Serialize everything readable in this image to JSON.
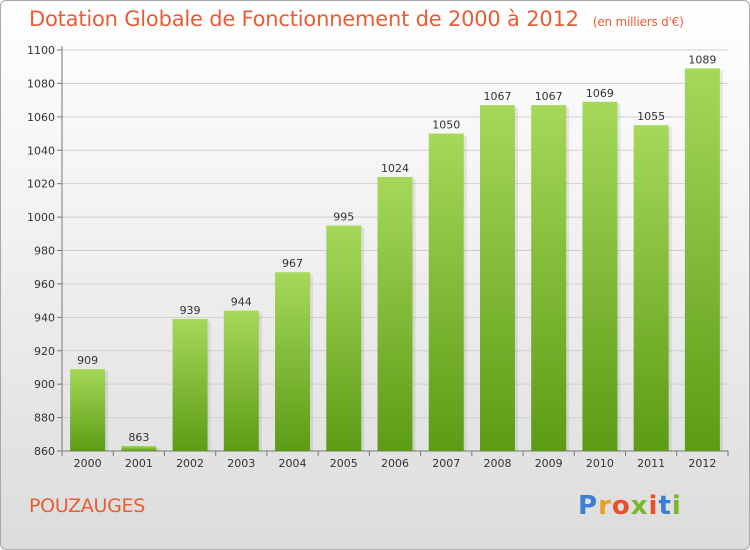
{
  "title": {
    "main": "Dotation Globale de Fonctionnement de 2000 à 2012",
    "unit": "(en milliers d'€)"
  },
  "commune": "POUZAUGES",
  "logo": {
    "text": "Proxiti",
    "letter_colors": [
      "#3b7fd0",
      "#f0a020",
      "#e8502a",
      "#79b82a",
      "#e8502a",
      "#3b7fd0",
      "#79b82a"
    ]
  },
  "colors": {
    "bar_light": "#a6d85a",
    "bar_dark": "#5c9c14",
    "accent": "#e85d36"
  },
  "chart_data": {
    "type": "bar",
    "categories": [
      "2000",
      "2001",
      "2002",
      "2003",
      "2004",
      "2005",
      "2006",
      "2007",
      "2008",
      "2009",
      "2010",
      "2011",
      "2012"
    ],
    "values": [
      909,
      863,
      939,
      944,
      967,
      995,
      1024,
      1050,
      1067,
      1067,
      1069,
      1055,
      1089
    ],
    "data_labels": [
      "909",
      "863",
      "939",
      "944",
      "967",
      "995",
      "1024",
      "1050",
      "1067",
      "1067",
      "1069",
      "1055",
      "1089"
    ],
    "ylim": [
      860,
      1100
    ],
    "yticks": [
      860,
      880,
      900,
      920,
      940,
      960,
      980,
      1000,
      1020,
      1040,
      1060,
      1080,
      1100
    ],
    "grid": true
  }
}
